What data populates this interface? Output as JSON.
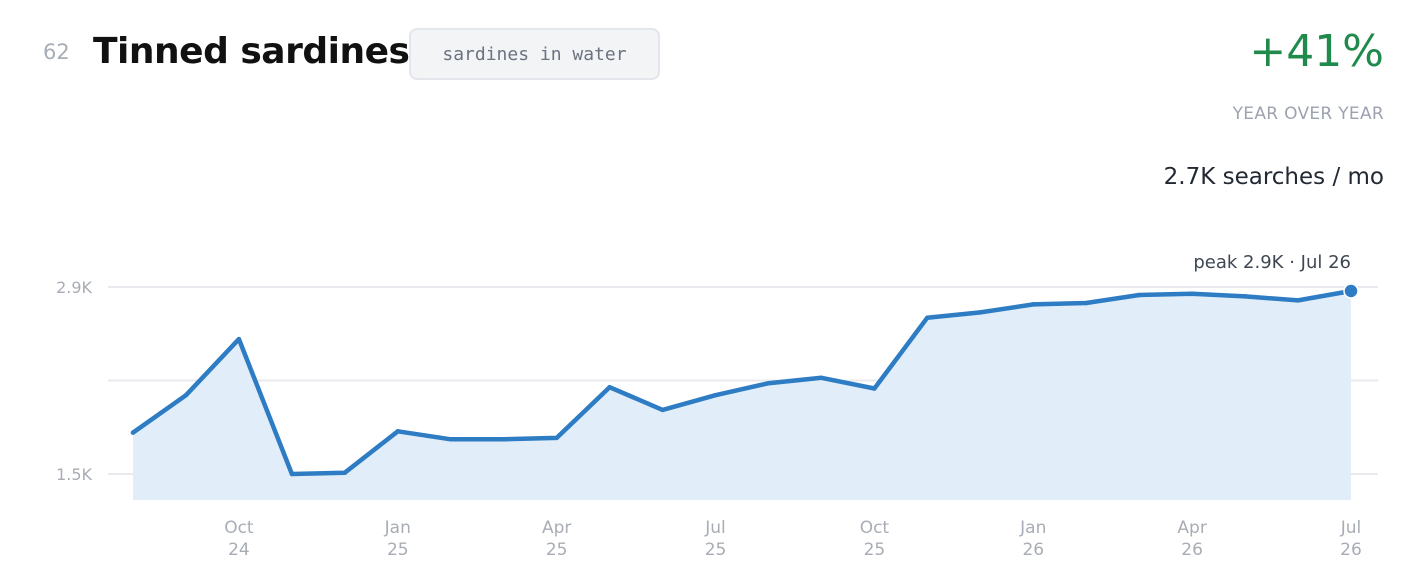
{
  "header": {
    "rank": "62",
    "title": "Tinned sardines",
    "tag": "sardines in water",
    "growth": "+41%",
    "growth_label": "YEAR OVER YEAR",
    "volume": "2.7K searches / mo"
  },
  "colors": {
    "line": "#2d7cc4",
    "area": "#e1edf8",
    "growth": "#1f8a4c",
    "grid": "#e8eaed"
  },
  "chart_data": {
    "type": "area",
    "x": [
      "2024-08",
      "2024-09",
      "2024-10",
      "2024-11",
      "2024-12",
      "2025-01",
      "2025-02",
      "2025-03",
      "2025-04",
      "2025-05",
      "2025-06",
      "2025-07",
      "2025-08",
      "2025-09",
      "2025-10",
      "2025-11",
      "2025-12",
      "2026-01",
      "2026-02",
      "2026-03",
      "2026-04",
      "2026-05",
      "2026-06",
      "2026-07"
    ],
    "series": [
      {
        "values": [
          1.81,
          2.09,
          2.51,
          1.5,
          1.51,
          1.82,
          1.76,
          1.76,
          1.77,
          2.15,
          1.98,
          2.09,
          2.18,
          2.22,
          2.14,
          2.67,
          2.71,
          2.77,
          2.78,
          2.84,
          2.85,
          2.83,
          2.8,
          2.87
        ]
      }
    ],
    "y_ticks": [
      {
        "value": 1.5,
        "label": "1.5K"
      },
      {
        "value": 2.9,
        "label": "2.9K"
      }
    ],
    "gridline_values": [
      1.5,
      2.2,
      2.9
    ],
    "x_ticks": [
      {
        "x": "2024-10",
        "month": "Oct",
        "year": "24"
      },
      {
        "x": "2025-01",
        "month": "Jan",
        "year": "25"
      },
      {
        "x": "2025-04",
        "month": "Apr",
        "year": "25"
      },
      {
        "x": "2025-07",
        "month": "Jul",
        "year": "25"
      },
      {
        "x": "2025-10",
        "month": "Oct",
        "year": "25"
      },
      {
        "x": "2026-01",
        "month": "Jan",
        "year": "26"
      },
      {
        "x": "2026-04",
        "month": "Apr",
        "year": "26"
      },
      {
        "x": "2026-07",
        "month": "Jul",
        "year": "26"
      }
    ],
    "annotation": {
      "x": "2026-07",
      "text": "peak 2.9K · Jul 26"
    },
    "ylim": [
      1.3,
      3.1
    ],
    "grid": true,
    "legend": "none"
  }
}
